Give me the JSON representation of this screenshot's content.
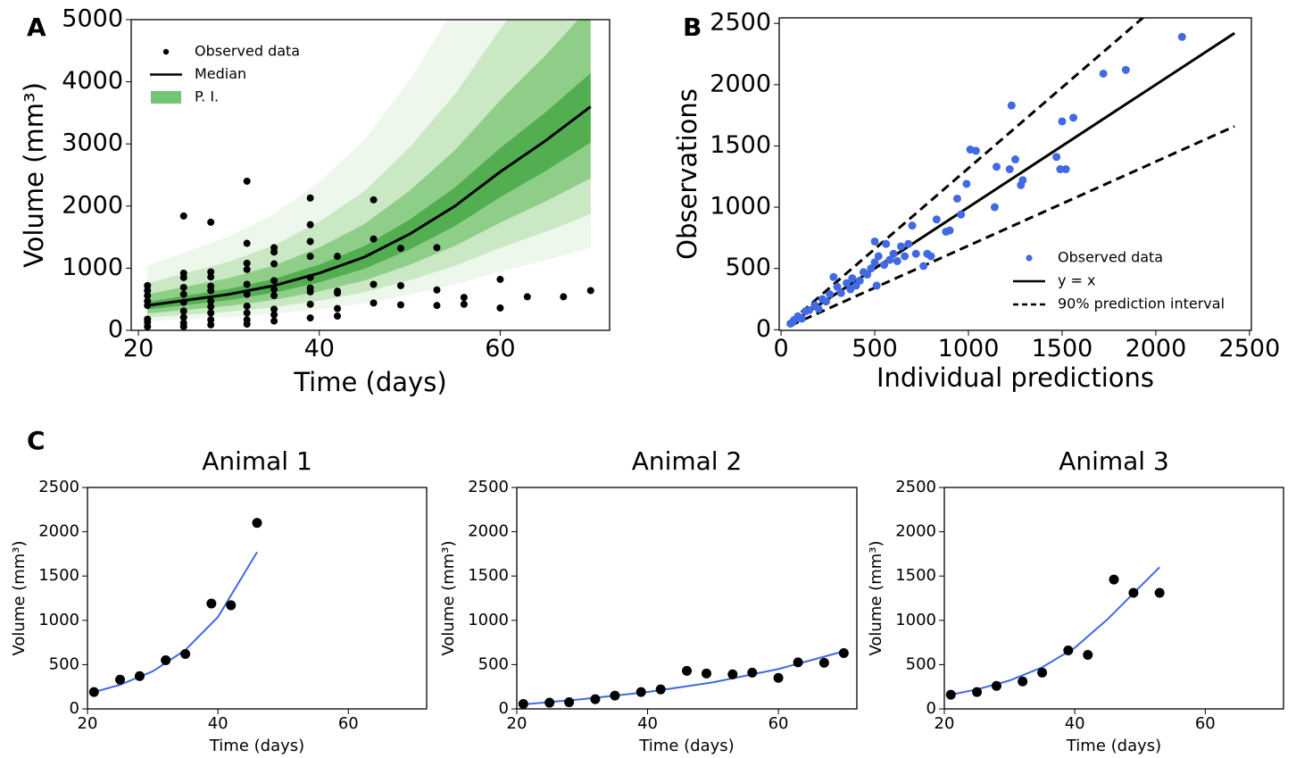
{
  "chart_data": [
    {
      "type": "line",
      "panel_label": "A",
      "x_label": "Time (days)",
      "y_label": "Volume (mm³)",
      "xlim": [
        19.2,
        72.1
      ],
      "ylim": [
        0,
        5000
      ],
      "xticks": [
        20,
        40,
        60
      ],
      "yticks": [
        0,
        1000,
        2000,
        3000,
        4000,
        5000
      ],
      "grid": false,
      "legend_loc": "upper left",
      "series": [
        {
          "name": "Observed data",
          "style": "scatter",
          "color": "#000000",
          "x": [
            21,
            21,
            21,
            21,
            21,
            21,
            21,
            21,
            25,
            25,
            25,
            25,
            25,
            25,
            25,
            25,
            25,
            25,
            28,
            28,
            28,
            28,
            28,
            28,
            28,
            28,
            28,
            28,
            32,
            32,
            32,
            32,
            32,
            32,
            32,
            32,
            32,
            32,
            35,
            35,
            35,
            35,
            35,
            35,
            35,
            35,
            35,
            39,
            39,
            39,
            39,
            39,
            39,
            39,
            39,
            39,
            42,
            42,
            42,
            42,
            42,
            46,
            46,
            46,
            46,
            49,
            49,
            49,
            53,
            53,
            53,
            56,
            56,
            60,
            60,
            63,
            67,
            70
          ],
          "y": [
            720,
            640,
            560,
            470,
            400,
            180,
            130,
            60,
            1840,
            920,
            850,
            690,
            580,
            450,
            310,
            210,
            120,
            60,
            1740,
            940,
            860,
            710,
            640,
            470,
            380,
            280,
            170,
            90,
            2400,
            1400,
            1080,
            980,
            740,
            580,
            390,
            280,
            170,
            100,
            1330,
            1260,
            1070,
            800,
            660,
            560,
            340,
            250,
            150,
            2130,
            1700,
            1430,
            1190,
            850,
            680,
            620,
            420,
            200,
            1190,
            630,
            600,
            350,
            230,
            2100,
            1470,
            740,
            440,
            1320,
            720,
            410,
            1330,
            650,
            400,
            530,
            420,
            820,
            360,
            540,
            540,
            640
          ]
        },
        {
          "name": "Median",
          "style": "line",
          "color": "#000000",
          "x": [
            21,
            25,
            30,
            35,
            40,
            45,
            50,
            55,
            60,
            65,
            70
          ],
          "y": [
            400,
            480,
            580,
            720,
            920,
            1180,
            1550,
            2000,
            2550,
            3050,
            3600
          ]
        },
        {
          "name": "P. I.",
          "style": "band",
          "color": "#74c476",
          "x": [
            21,
            25,
            30,
            35,
            40,
            45,
            50,
            55,
            60,
            65,
            70
          ],
          "bands": [
            {
              "color": "#edf7eb",
              "lower": [
                148,
                178,
                215,
                266,
                340,
                437,
                574,
                740,
                944,
                1129,
                1332
              ],
              "upper": [
                1040,
                1248,
                1508,
                1872,
                2392,
                3068,
                4030,
                5200,
                6630,
                7930,
                9360
              ]
            },
            {
              "color": "#c9e8c3",
              "lower": [
                208,
                250,
                302,
                374,
                478,
                614,
                806,
                1040,
                1326,
                1586,
                1872
              ],
              "upper": [
                760,
                912,
                1102,
                1368,
                1748,
                2242,
                2945,
                3800,
                4845,
                5795,
                6840
              ]
            },
            {
              "color": "#8fce88",
              "lower": [
                272,
                326,
                394,
                490,
                626,
                802,
                1054,
                1360,
                1734,
                2074,
                2448
              ],
              "upper": [
                580,
                696,
                841,
                1044,
                1334,
                1711,
                2248,
                2900,
                3698,
                4423,
                5220
              ]
            },
            {
              "color": "#52ae50",
              "lower": [
                336,
                403,
                487,
                605,
                773,
                991,
                1302,
                1680,
                2142,
                2562,
                3024
              ],
              "upper": [
                460,
                552,
                667,
                828,
                1058,
                1357,
                1783,
                2300,
                2933,
                3508,
                4140
              ]
            }
          ]
        }
      ]
    },
    {
      "type": "scatter",
      "panel_label": "B",
      "x_label": "Individual predictions",
      "y_label": "Observations",
      "xlim": [
        -10,
        2510
      ],
      "ylim": [
        -5,
        2545
      ],
      "xticks": [
        0,
        500,
        1000,
        1500,
        2000,
        2500
      ],
      "yticks": [
        0,
        500,
        1000,
        1500,
        2000,
        2500
      ],
      "grid": false,
      "legend_loc": "lower right",
      "series": [
        {
          "name": "Observed data",
          "style": "scatter",
          "color": "#4169e1",
          "x": [
            50,
            60,
            70,
            90,
            110,
            130,
            150,
            180,
            200,
            220,
            240,
            260,
            280,
            300,
            320,
            350,
            370,
            380,
            400,
            420,
            440,
            460,
            480,
            500,
            500,
            510,
            520,
            550,
            560,
            580,
            600,
            620,
            640,
            660,
            680,
            700,
            720,
            760,
            780,
            800,
            830,
            880,
            900,
            940,
            960,
            990,
            1010,
            1040,
            1140,
            1150,
            1220,
            1230,
            1250,
            1280,
            1290,
            1470,
            1490,
            1500,
            1520,
            1560,
            1720,
            1840,
            2140
          ],
          "y": [
            50,
            60,
            80,
            110,
            90,
            150,
            160,
            200,
            170,
            250,
            230,
            290,
            430,
            350,
            300,
            380,
            330,
            420,
            360,
            400,
            470,
            450,
            500,
            720,
            550,
            360,
            600,
            530,
            700,
            570,
            620,
            560,
            680,
            600,
            700,
            850,
            620,
            520,
            620,
            600,
            900,
            800,
            810,
            1070,
            940,
            1190,
            1470,
            1460,
            1000,
            1330,
            1310,
            1830,
            1390,
            1180,
            1220,
            1410,
            1310,
            1700,
            1310,
            1730,
            2090,
            2120,
            2390
          ]
        },
        {
          "name": "y = x",
          "style": "line",
          "color": "#000000",
          "x": [
            50,
            2420
          ],
          "y": [
            50,
            2420
          ]
        },
        {
          "name": "90% prediction interval",
          "style": "dashed",
          "color": "#000000",
          "x": [
            50,
            2420
          ],
          "lower": [
            34,
            1660
          ],
          "upper": [
            66,
            3190
          ]
        }
      ]
    },
    {
      "type": "line",
      "panel_label": "C",
      "title": "Animal 1",
      "x_label": "Time (days)",
      "y_label": "Volume (mm³)",
      "xlim": [
        20,
        72
      ],
      "ylim": [
        0,
        2500
      ],
      "xticks": [
        20,
        40,
        60
      ],
      "yticks": [
        0,
        500,
        1000,
        1500,
        2000,
        2500
      ],
      "grid": false,
      "series": [
        {
          "style": "scatter",
          "color": "#000000",
          "x": [
            21,
            25,
            28,
            32,
            35,
            39,
            42,
            46
          ],
          "y": [
            190,
            330,
            370,
            550,
            620,
            1190,
            1170,
            2100
          ]
        },
        {
          "style": "line",
          "color": "#4169e1",
          "x": [
            21,
            25,
            30,
            35,
            40,
            46
          ],
          "y": [
            190,
            272,
            424,
            664,
            1037,
            1770
          ]
        }
      ]
    },
    {
      "type": "line",
      "title": "Animal 2",
      "x_label": "Time (days)",
      "y_label": "Volume (mm³)",
      "xlim": [
        20,
        72
      ],
      "ylim": [
        0,
        2500
      ],
      "xticks": [
        20,
        40,
        60
      ],
      "yticks": [
        0,
        500,
        1000,
        1500,
        2000,
        2500
      ],
      "grid": false,
      "series": [
        {
          "style": "scatter",
          "color": "#000000",
          "x": [
            21,
            25,
            28,
            32,
            35,
            39,
            42,
            46,
            49,
            53,
            56,
            60,
            63,
            67,
            70
          ],
          "y": [
            55,
            70,
            75,
            110,
            150,
            190,
            220,
            430,
            400,
            390,
            410,
            350,
            525,
            520,
            630
          ]
        },
        {
          "style": "line",
          "color": "#4169e1",
          "x": [
            21,
            30,
            40,
            50,
            60,
            70
          ],
          "y": [
            50,
            110,
            190,
            300,
            450,
            650
          ]
        }
      ]
    },
    {
      "type": "line",
      "title": "Animal 3",
      "x_label": "Time (days)",
      "y_label": "Volume (mm³)",
      "xlim": [
        20,
        72
      ],
      "ylim": [
        0,
        2500
      ],
      "xticks": [
        20,
        40,
        60
      ],
      "yticks": [
        0,
        500,
        1000,
        1500,
        2000,
        2500
      ],
      "grid": false,
      "series": [
        {
          "style": "scatter",
          "color": "#000000",
          "x": [
            21,
            25,
            28,
            32,
            35,
            39,
            42,
            46,
            49,
            53
          ],
          "y": [
            160,
            190,
            260,
            310,
            410,
            660,
            610,
            1460,
            1310,
            1310
          ]
        },
        {
          "style": "line",
          "color": "#4169e1",
          "x": [
            21,
            25,
            30,
            35,
            40,
            45,
            53
          ],
          "y": [
            160,
            220,
            320,
            470,
            690,
            1010,
            1600
          ]
        }
      ]
    }
  ]
}
